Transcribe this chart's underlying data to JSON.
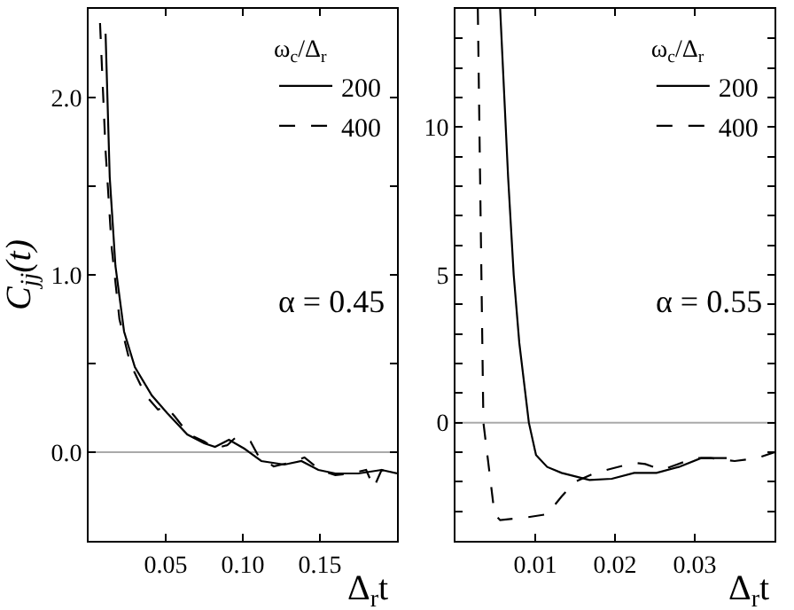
{
  "chart_data": [
    {
      "type": "line",
      "xlabel": "Δ$_{r}$t",
      "ylabel": "C$_{jj}$(t)",
      "legend_title": "ω$_{c}$/Δ$_{r}$",
      "legend": "top right",
      "xlim": [
        0,
        0.2
      ],
      "ylim": [
        -0.5,
        2.5
      ],
      "xticks": [
        {
          "value": 0.05,
          "label": "0.05"
        },
        {
          "value": 0.1,
          "label": "0.10"
        },
        {
          "value": 0.15,
          "label": "0.15"
        }
      ],
      "yticks": [
        {
          "value": -0.5,
          "label": null
        },
        {
          "value": 0,
          "label": "0.0"
        },
        {
          "value": 0.5,
          "label": null
        },
        {
          "value": 1,
          "label": "1.0"
        },
        {
          "value": 1.5,
          "label": null
        },
        {
          "value": 2,
          "label": "2.0"
        }
      ],
      "ref_lines": [
        {
          "axis": "y",
          "value": 0,
          "color": "#aaaaaa"
        }
      ],
      "annotations": [
        "α = 0.45"
      ],
      "series": [
        {
          "name": "200",
          "color": "#000000",
          "line_style": "solid",
          "x": [
            0.011,
            0.0137,
            0.0174,
            0.023,
            0.03,
            0.041,
            0.051,
            0.064,
            0.075,
            0.082,
            0.091,
            0.101,
            0.112,
            0.127,
            0.138,
            0.149,
            0.16,
            0.175,
            0.19,
            0.2
          ],
          "values": [
            2.36,
            1.55,
            1.05,
            0.68,
            0.48,
            0.32,
            0.22,
            0.1,
            0.05,
            0.03,
            0.07,
            0.02,
            -0.05,
            -0.07,
            -0.05,
            -0.1,
            -0.12,
            -0.12,
            -0.1,
            -0.12
          ]
        },
        {
          "name": "400",
          "color": "#000000",
          "line_style": "dashed",
          "x": [
            0.0074,
            0.011,
            0.015,
            0.02,
            0.027,
            0.037,
            0.045,
            0.05,
            0.056,
            0.065,
            0.075,
            0.082,
            0.09,
            0.095,
            0.1,
            0.105,
            0.11,
            0.12,
            0.13,
            0.14,
            0.15,
            0.16,
            0.17,
            0.18,
            0.185,
            0.19,
            0.2
          ],
          "values": [
            2.42,
            1.7,
            1.15,
            0.75,
            0.5,
            0.32,
            0.24,
            0.26,
            0.2,
            0.1,
            0.06,
            0.02,
            0.04,
            0.08,
            0.07,
            0.06,
            -0.02,
            -0.08,
            -0.06,
            -0.03,
            -0.1,
            -0.13,
            -0.12,
            -0.1,
            -0.2,
            -0.1,
            -0.13
          ]
        }
      ]
    },
    {
      "type": "line",
      "xlabel": "Δ$_{r}$t",
      "legend_title": "ω$_{c}$/Δ$_{r}$",
      "legend": "top right",
      "xlim": [
        0,
        0.04
      ],
      "ylim": [
        -4,
        14
      ],
      "xticks": [
        0.01,
        0.02,
        0.03
      ],
      "yticks": [
        {
          "value": -4,
          "label": null
        },
        {
          "value": -3,
          "label": null
        },
        {
          "value": -2,
          "label": null
        },
        {
          "value": -1,
          "label": null
        },
        0,
        {
          "value": 1,
          "label": null
        },
        {
          "value": 2,
          "label": null
        },
        {
          "value": 3,
          "label": null
        },
        {
          "value": 4,
          "label": null
        },
        5,
        {
          "value": 6,
          "label": null
        },
        {
          "value": 7,
          "label": null
        },
        {
          "value": 8,
          "label": null
        },
        {
          "value": 9,
          "label": null
        },
        10,
        {
          "value": 11,
          "label": null
        },
        {
          "value": 12,
          "label": null
        },
        {
          "value": 13,
          "label": null
        }
      ],
      "ref_lines": [
        {
          "axis": "y",
          "value": 0,
          "color": "#aaaaaa"
        }
      ],
      "annotations": [
        "α = 0.55"
      ],
      "series": [
        {
          "name": "200",
          "color": "#000000",
          "line_style": "solid",
          "x": [
            0.0056,
            0.0066,
            0.0073,
            0.008,
            0.0092,
            0.0101,
            0.0115,
            0.0133,
            0.0168,
            0.0196,
            0.0224,
            0.0252,
            0.028,
            0.0308,
            0.0322,
            0.034
          ],
          "values": [
            14,
            8.3,
            5,
            2.7,
            0,
            -1.1,
            -1.5,
            -1.7,
            -1.94,
            -1.9,
            -1.7,
            -1.7,
            -1.5,
            -1.2,
            -1.2,
            -1.2
          ]
        },
        {
          "name": "400",
          "color": "#000000",
          "line_style": "dashed",
          "x": [
            0.0028,
            0.0035,
            0.0049,
            0.0056,
            0.0091,
            0.0115,
            0.0133,
            0.015,
            0.0175,
            0.0224,
            0.0238,
            0.0259,
            0.03,
            0.032,
            0.035,
            0.0378,
            0.04
          ],
          "values": [
            14,
            0,
            -3.1,
            -3.3,
            -3.2,
            -3.1,
            -2.5,
            -2.0,
            -1.7,
            -1.36,
            -1.4,
            -1.6,
            -1.2,
            -1.2,
            -1.3,
            -1.2,
            -1.0
          ]
        }
      ]
    }
  ]
}
